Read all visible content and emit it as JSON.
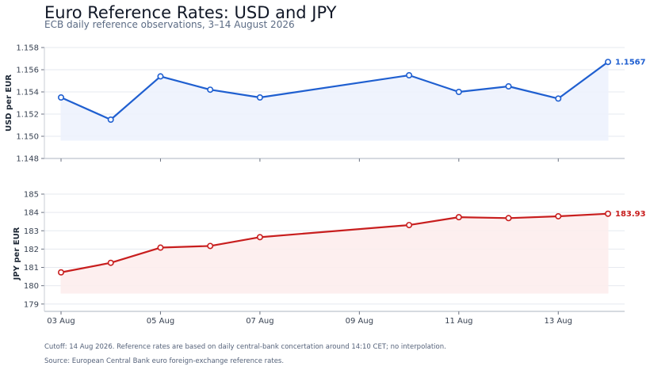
{
  "title": "Euro Reference Rates: USD and JPY",
  "subtitle": "ECB daily reference observations, 3–14 August 2026",
  "footnote": "Cutoff: 14 Aug 2026. Reference rates are based on daily central-bank concertation around 14:10 CET; no interpolation.",
  "source": "Source: European Central Bank euro foreign-exchange reference rates.",
  "chart_data": [
    {
      "type": "line",
      "ylabel": "USD per EUR",
      "color": "#1f5fd0",
      "fill": "#eef2fd",
      "ylim": [
        1.148,
        1.158
      ],
      "yticks": [
        1.148,
        1.15,
        1.152,
        1.154,
        1.156,
        1.158
      ],
      "ytick_labels": [
        "1.148",
        "1.150",
        "1.152",
        "1.154",
        "1.156",
        "1.158"
      ],
      "x": [
        "2026-08-03",
        "2026-08-04",
        "2026-08-05",
        "2026-08-06",
        "2026-08-07",
        "2026-08-10",
        "2026-08-11",
        "2026-08-12",
        "2026-08-13",
        "2026-08-14"
      ],
      "values": [
        1.1535,
        1.1515,
        1.1554,
        1.1542,
        1.1535,
        1.1555,
        1.154,
        1.1545,
        1.1534,
        1.1567
      ],
      "end_label": "1.1567",
      "grid": true
    },
    {
      "type": "line",
      "ylabel": "JPY per EUR",
      "color": "#c81e1e",
      "fill": "#fdeeee",
      "ylim": [
        178.6,
        185
      ],
      "yticks": [
        179,
        180,
        181,
        182,
        183,
        184,
        185
      ],
      "ytick_labels": [
        "179",
        "180",
        "181",
        "182",
        "183",
        "184",
        "185"
      ],
      "x": [
        "2026-08-03",
        "2026-08-04",
        "2026-08-05",
        "2026-08-06",
        "2026-08-07",
        "2026-08-10",
        "2026-08-11",
        "2026-08-12",
        "2026-08-13",
        "2026-08-14"
      ],
      "values": [
        180.73,
        181.25,
        182.08,
        182.17,
        182.65,
        183.31,
        183.74,
        183.69,
        183.79,
        183.93
      ],
      "end_label": "183.93",
      "grid": true
    }
  ],
  "x_axis": {
    "ticks": [
      "2026-08-03",
      "2026-08-05",
      "2026-08-07",
      "2026-08-09",
      "2026-08-11",
      "2026-08-13"
    ],
    "tick_labels": [
      "03 Aug",
      "05 Aug",
      "07 Aug",
      "09 Aug",
      "11 Aug",
      "13 Aug"
    ]
  }
}
